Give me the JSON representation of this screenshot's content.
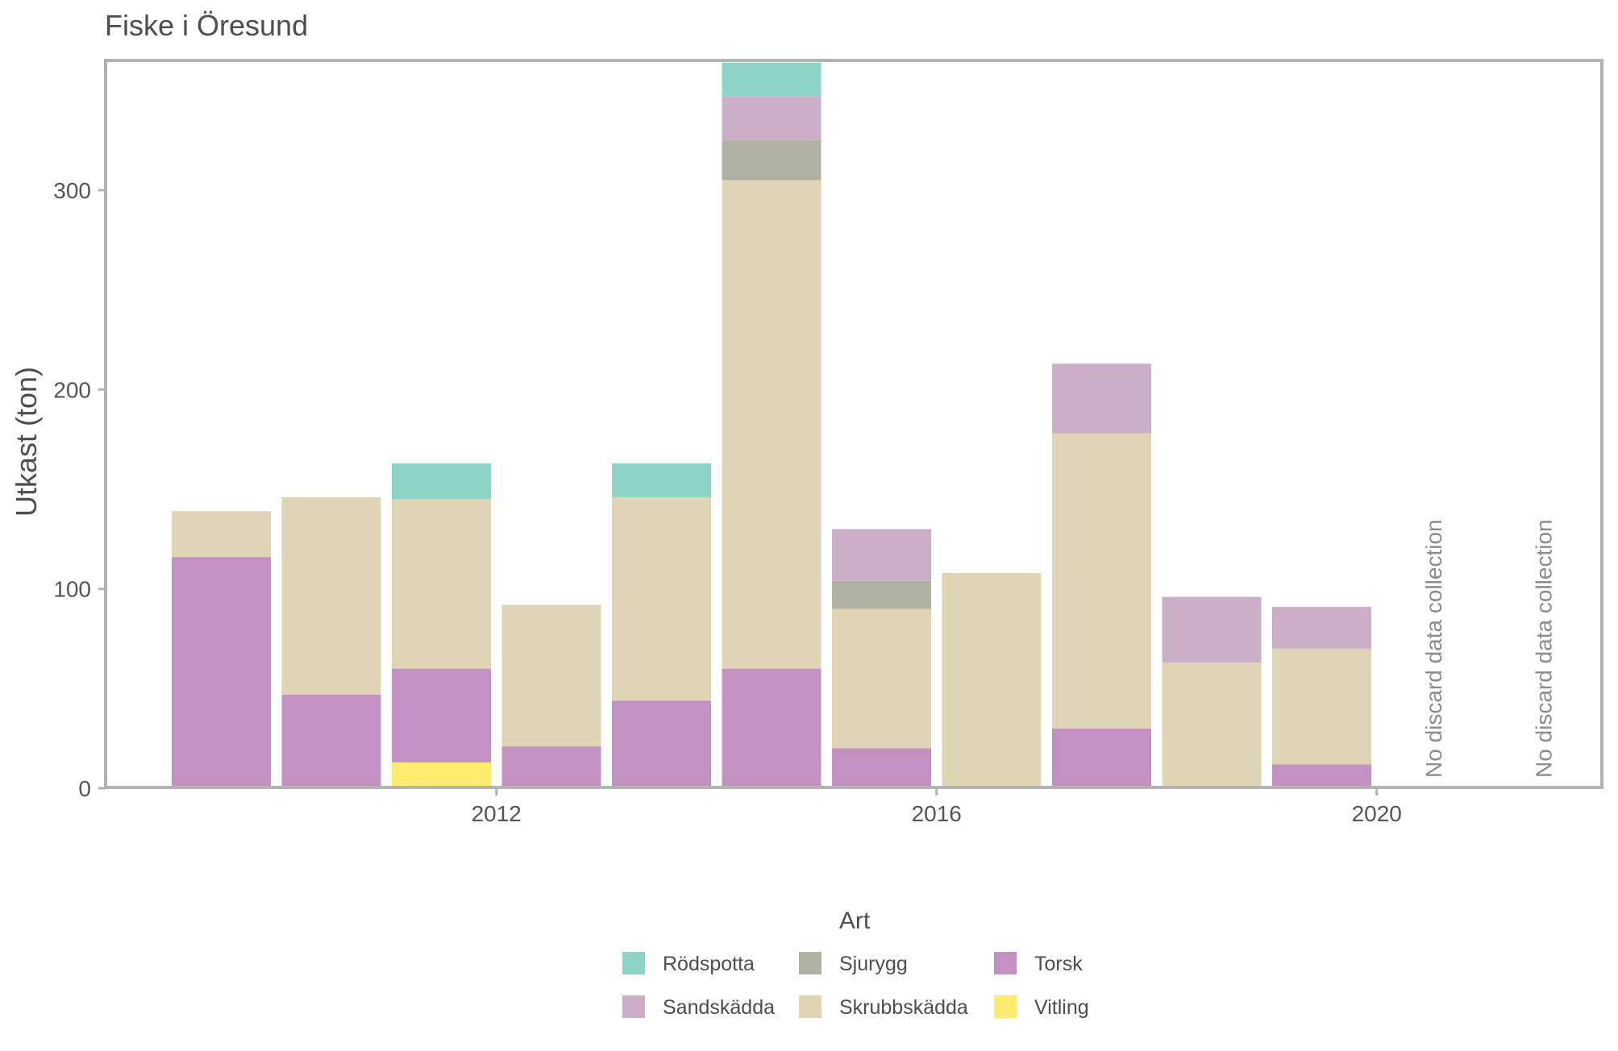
{
  "chart_data": {
    "type": "bar",
    "stacked": true,
    "title": "Fiske i Öresund",
    "xlabel": "",
    "ylabel": "Utkast (ton)",
    "x": [
      2009,
      2010,
      2011,
      2012,
      2013,
      2014,
      2015,
      2016,
      2017,
      2018,
      2019,
      2020,
      2021
    ],
    "x_ticks": [
      2012,
      2016,
      2020
    ],
    "x_tick_labels": [
      "2012",
      "2016",
      "2020"
    ],
    "y_ticks": [
      0,
      100,
      200,
      300
    ],
    "y_tick_labels": [
      "0",
      "100",
      "200",
      "300"
    ],
    "ylim": [
      0,
      364
    ],
    "grid": false,
    "series": [
      {
        "name": "Vitling",
        "color": "#FFEC6E",
        "values": [
          0,
          0,
          13,
          0,
          0,
          0,
          0,
          0,
          0,
          0,
          0,
          0,
          0
        ]
      },
      {
        "name": "Torsk",
        "color": "#C291C1",
        "values": [
          116,
          47,
          47,
          21,
          44,
          60,
          20,
          0,
          30,
          0,
          12,
          0,
          0
        ]
      },
      {
        "name": "Skrubbskädda",
        "color": "#DFD5B4",
        "values": [
          23,
          99,
          85,
          71,
          102,
          245,
          70,
          108,
          148,
          63,
          58,
          0,
          0
        ]
      },
      {
        "name": "Sjurygg",
        "color": "#B1B1A3",
        "values": [
          0,
          0,
          0,
          0,
          0,
          20,
          14,
          0,
          0,
          0,
          0,
          0,
          0
        ]
      },
      {
        "name": "Sandskädda",
        "color": "#CAAFC6",
        "values": [
          0,
          0,
          0,
          0,
          0,
          22,
          26,
          0,
          35,
          33,
          21,
          0,
          0
        ]
      },
      {
        "name": "Rödspotta",
        "color": "#8ED4C6",
        "values": [
          0,
          0,
          18,
          0,
          17,
          17,
          0,
          0,
          0,
          0,
          0,
          0,
          0
        ]
      }
    ],
    "annotations": [
      {
        "x": 2020,
        "text": "No discard data collection"
      },
      {
        "x": 2021,
        "text": "No discard data collection"
      }
    ],
    "legend": {
      "title": "Art",
      "placement": "bottom",
      "items": [
        {
          "label": "Rödspotta",
          "color": "#8ED4C6"
        },
        {
          "label": "Sandskädda",
          "color": "#CAAFC6"
        },
        {
          "label": "Sjurygg",
          "color": "#B1B1A3"
        },
        {
          "label": "Skrubbskädda",
          "color": "#DFD5B4"
        },
        {
          "label": "Torsk",
          "color": "#C291C1"
        },
        {
          "label": "Vitling",
          "color": "#FFEC6E"
        }
      ]
    },
    "colors": {
      "panel_border": "#B3B3B3",
      "text": "#4D4D4D",
      "tick_text": "#555555",
      "annotation_text": "#8C8C8C"
    }
  }
}
